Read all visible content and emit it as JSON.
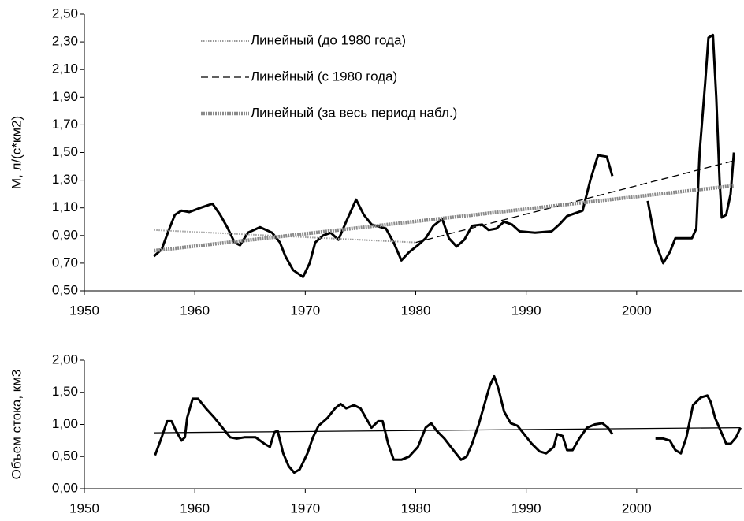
{
  "chart_data": [
    {
      "type": "line",
      "y_label": "М, л/(с*км2)",
      "xlim": [
        1950,
        2009.5
      ],
      "xticks": [
        1950,
        1960,
        1970,
        1980,
        1990,
        2000
      ],
      "ylim": [
        0.5,
        2.5
      ],
      "yticks": [
        {
          "value": 0.5,
          "label": "0,50"
        },
        {
          "value": 0.7,
          "label": "0,70"
        },
        {
          "value": 0.9,
          "label": "0,90"
        },
        {
          "value": 1.1,
          "label": "1,10"
        },
        {
          "value": 1.3,
          "label": "1,30"
        },
        {
          "value": 1.5,
          "label": "1,50"
        },
        {
          "value": 1.7,
          "label": "1,70"
        },
        {
          "value": 1.9,
          "label": "1,90"
        },
        {
          "value": 2.1,
          "label": "2,10"
        },
        {
          "value": 2.3,
          "label": "2,30"
        },
        {
          "value": 2.5,
          "label": "2,50"
        }
      ],
      "series": [
        {
          "color": "#000000",
          "line_style": "bold",
          "x": [
            1956.3,
            1957.0,
            1957.7,
            1958.2,
            1958.8,
            1959.5,
            1960.5,
            1961.6,
            1962.3,
            1963.0,
            1963.6,
            1964.1,
            1964.8,
            1965.9,
            1967.0,
            1967.7,
            1968.2,
            1968.9,
            1969.8,
            1970.4,
            1970.9,
            1971.6,
            1972.3,
            1973.0,
            1973.7,
            1974.6,
            1975.3,
            1976.0,
            1977.3,
            1978.0,
            1978.7,
            1979.4,
            1980.2,
            1980.9,
            1981.6,
            1982.4,
            1983.0,
            1983.7,
            1984.4,
            1985.1,
            1986.0,
            1986.6,
            1987.3,
            1988.0,
            1988.7,
            1989.4,
            1990.8,
            1992.3,
            1993.0,
            1993.7,
            1994.4,
            1995.1,
            1995.8,
            1996.5,
            1997.3,
            1997.8,
            1999.4,
            2001.0,
            2001.7,
            2002.4,
            2003.0,
            2003.5,
            2005.0,
            2005.4,
            2005.7,
            2006.2,
            2006.5,
            2006.9,
            2007.2,
            2007.5,
            2007.7,
            2008.1,
            2008.5,
            2008.8
          ],
          "values": [
            0.75,
            0.8,
            0.95,
            1.05,
            1.08,
            1.07,
            1.1,
            1.13,
            1.05,
            0.95,
            0.85,
            0.83,
            0.92,
            0.96,
            0.92,
            0.85,
            0.75,
            0.65,
            0.6,
            0.7,
            0.85,
            0.9,
            0.92,
            0.87,
            1.0,
            1.16,
            1.05,
            0.98,
            0.95,
            0.85,
            0.72,
            0.78,
            0.83,
            0.88,
            0.97,
            1.02,
            0.88,
            0.82,
            0.87,
            0.97,
            0.98,
            0.94,
            0.95,
            1.0,
            0.98,
            0.93,
            0.92,
            0.93,
            0.98,
            1.04,
            1.06,
            1.08,
            1.3,
            1.48,
            1.47,
            1.33,
            null,
            1.15,
            0.85,
            0.7,
            0.78,
            0.88,
            0.88,
            0.95,
            1.5,
            2.0,
            2.33,
            2.35,
            1.9,
            1.3,
            1.03,
            1.05,
            1.2,
            1.5
          ]
        },
        {
          "name": "Линейный (до 1980 года)",
          "color": "#999999",
          "line_style": "dotted",
          "x": [
            1956.3,
            1980.0
          ],
          "values": [
            0.94,
            0.85
          ]
        },
        {
          "name": "Линейный (с 1980 года)",
          "color": "#000000",
          "line_style": "dashed",
          "x": [
            1980.0,
            2008.8
          ],
          "values": [
            0.85,
            1.44
          ]
        },
        {
          "name": "Линейный (за весь период набл.)",
          "color": "#8a8a8a",
          "line_style": "thick",
          "x": [
            1956.3,
            2008.8
          ],
          "values": [
            0.79,
            1.26
          ]
        }
      ]
    },
    {
      "type": "line",
      "y_label": "Объем стока, км3",
      "xlim": [
        1950,
        2009.5
      ],
      "xticks": [
        1950,
        1960,
        1970,
        1980,
        1990,
        2000
      ],
      "ylim": [
        0,
        2
      ],
      "yticks": [
        {
          "value": 0,
          "label": "0,00"
        },
        {
          "value": 0.5,
          "label": "0,50"
        },
        {
          "value": 1,
          "label": "1,00"
        },
        {
          "value": 1.5,
          "label": "1,50"
        },
        {
          "value": 2,
          "label": "2,00"
        }
      ],
      "series": [
        {
          "color": "#000000",
          "line_style": "bold",
          "x": [
            1956.4,
            1957.0,
            1957.5,
            1957.9,
            1958.3,
            1958.8,
            1959.1,
            1959.3,
            1959.8,
            1960.3,
            1961.0,
            1961.8,
            1962.5,
            1963.2,
            1963.8,
            1964.5,
            1965.5,
            1966.3,
            1966.8,
            1967.2,
            1967.5,
            1968.0,
            1968.5,
            1969.0,
            1969.5,
            1970.2,
            1970.7,
            1971.2,
            1972.0,
            1972.7,
            1973.2,
            1973.7,
            1974.4,
            1975.0,
            1975.5,
            1976.0,
            1976.6,
            1977.0,
            1977.5,
            1978.0,
            1978.7,
            1979.4,
            1980.2,
            1980.9,
            1981.4,
            1981.9,
            1982.6,
            1983.4,
            1984.1,
            1984.6,
            1985.1,
            1985.7,
            1986.2,
            1986.7,
            1987.1,
            1987.5,
            1988.0,
            1988.6,
            1989.2,
            1989.8,
            1990.5,
            1991.2,
            1991.8,
            1992.5,
            1992.8,
            1993.3,
            1993.7,
            1994.2,
            1994.8,
            1995.5,
            1996.2,
            1996.9,
            1997.4,
            1997.8,
            1999.8,
            2001.7,
            2002.4,
            2003.0,
            2003.5,
            2004.0,
            2004.5,
            2005.1,
            2005.8,
            2006.4,
            2006.7,
            2007.1,
            2007.6,
            2008.1,
            2008.5,
            2009.0,
            2009.4
          ],
          "values": [
            0.52,
            0.8,
            1.05,
            1.05,
            0.9,
            0.75,
            0.8,
            1.1,
            1.4,
            1.4,
            1.25,
            1.1,
            0.95,
            0.8,
            0.78,
            0.8,
            0.8,
            0.7,
            0.65,
            0.88,
            0.9,
            0.55,
            0.35,
            0.25,
            0.3,
            0.55,
            0.8,
            0.98,
            1.1,
            1.25,
            1.32,
            1.25,
            1.3,
            1.25,
            1.1,
            0.95,
            1.05,
            1.05,
            0.7,
            0.45,
            0.45,
            0.5,
            0.65,
            0.95,
            1.02,
            0.9,
            0.78,
            0.6,
            0.45,
            0.5,
            0.7,
            1.0,
            1.3,
            1.6,
            1.75,
            1.55,
            1.2,
            1.02,
            0.98,
            0.85,
            0.7,
            0.58,
            0.55,
            0.65,
            0.85,
            0.82,
            0.6,
            0.6,
            0.78,
            0.95,
            1.0,
            1.02,
            0.95,
            0.85,
            null,
            0.78,
            0.78,
            0.75,
            0.6,
            0.55,
            0.8,
            1.3,
            1.42,
            1.45,
            1.35,
            1.1,
            0.9,
            0.7,
            0.7,
            0.8,
            0.95
          ]
        },
        {
          "color": "#000000",
          "line_style": "thin",
          "x": [
            1956.3,
            2009.4
          ],
          "values": [
            0.87,
            0.95
          ]
        }
      ]
    }
  ]
}
